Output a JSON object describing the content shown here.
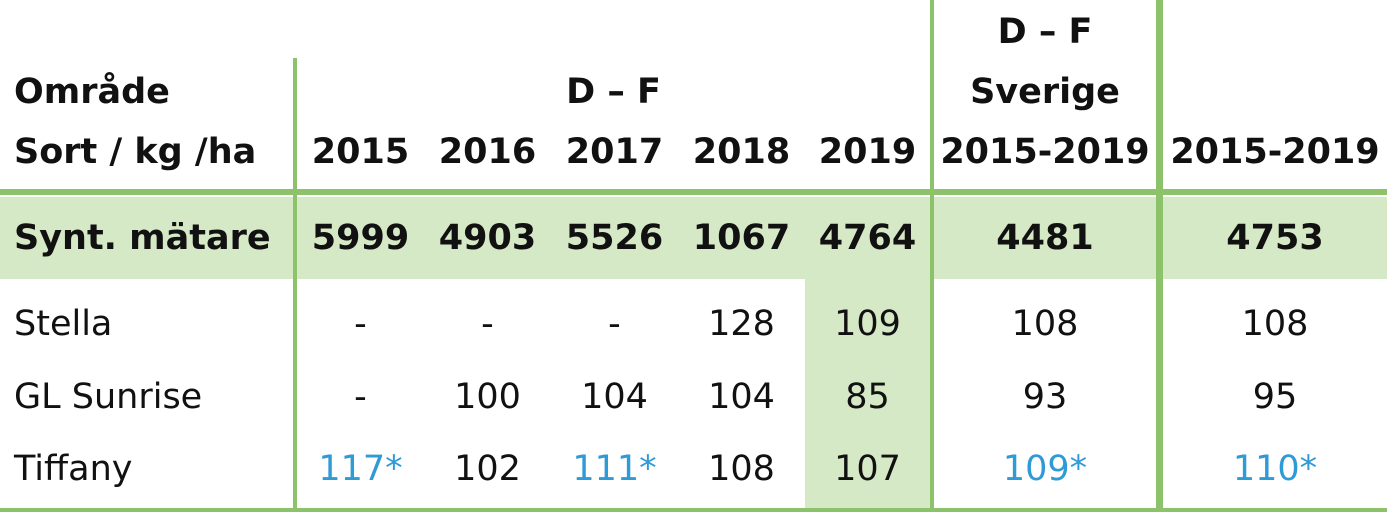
{
  "table": {
    "header": {
      "row_label_line1": "Område",
      "row_label_line2": "Sort / kg /ha",
      "group_df": "D – F",
      "years": [
        "2015",
        "2016",
        "2017",
        "2018",
        "2019"
      ],
      "col6_line1": "D – F",
      "col6_line2": "Sverige",
      "col6_line3": "2015-2019",
      "col7_line3": "2015-2019"
    },
    "rows": [
      {
        "name": "Synt. mätare",
        "values": [
          "5999",
          "4903",
          "5526",
          "1067",
          "4764",
          "4481",
          "4753"
        ],
        "bold": true
      },
      {
        "name": "Stella",
        "values": [
          "-",
          "-",
          "-",
          "128",
          "109",
          "108",
          "108"
        ]
      },
      {
        "name": "GL Sunrise",
        "values": [
          "-",
          "100",
          "104",
          "104",
          "85",
          "93",
          "95"
        ]
      },
      {
        "name": "Tiffany",
        "values": [
          "117*",
          "102",
          "111*",
          "108",
          "107",
          "109*",
          "110*"
        ]
      }
    ],
    "colors": {
      "green_line": "#8cc26a",
      "highlight_band": "#d6e9c6",
      "asterisk_blue": "#2e9ad6",
      "text": "#111111"
    }
  },
  "chart_data": {
    "type": "table",
    "columns": [
      "Område Sort / kg /ha",
      "2015",
      "2016",
      "2017",
      "2018",
      "2019",
      "D – F Sverige 2015-2019",
      "2015-2019"
    ],
    "column_groups": [
      {
        "label": "D – F",
        "columns": [
          "2015",
          "2016",
          "2017",
          "2018",
          "2019"
        ]
      },
      {
        "label": "D – F Sverige",
        "columns": [
          "2015-2019"
        ]
      }
    ],
    "rows": [
      [
        "Synt. mätare",
        "5999",
        "4903",
        "5526",
        "1067",
        "4764",
        "4481",
        "4753"
      ],
      [
        "Stella",
        "-",
        "-",
        "-",
        "128",
        "109",
        "108",
        "108"
      ],
      [
        "GL Sunrise",
        "-",
        "100",
        "104",
        "104",
        "85",
        "93",
        "95"
      ],
      [
        "Tiffany",
        "117*",
        "102",
        "111*",
        "108",
        "107",
        "109*",
        "110*"
      ]
    ]
  }
}
